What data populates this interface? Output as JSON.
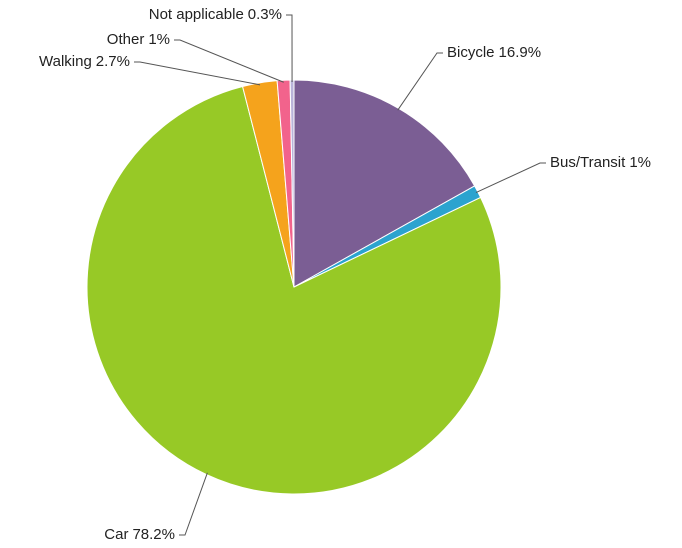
{
  "chart_data": {
    "type": "pie",
    "categories": [
      "Bicycle",
      "Bus/Transit",
      "Car",
      "Walking",
      "Other",
      "Not applicable"
    ],
    "values": [
      16.9,
      1,
      78.2,
      2.7,
      1,
      0.3
    ],
    "value_labels": [
      "16.9%",
      "1%",
      "78.2%",
      "2.7%",
      "1%",
      "0.3%"
    ],
    "colors": [
      "#7b5e94",
      "#2ba3cf",
      "#97c926",
      "#f5a31c",
      "#f2638c",
      "#b9b3d9"
    ]
  }
}
